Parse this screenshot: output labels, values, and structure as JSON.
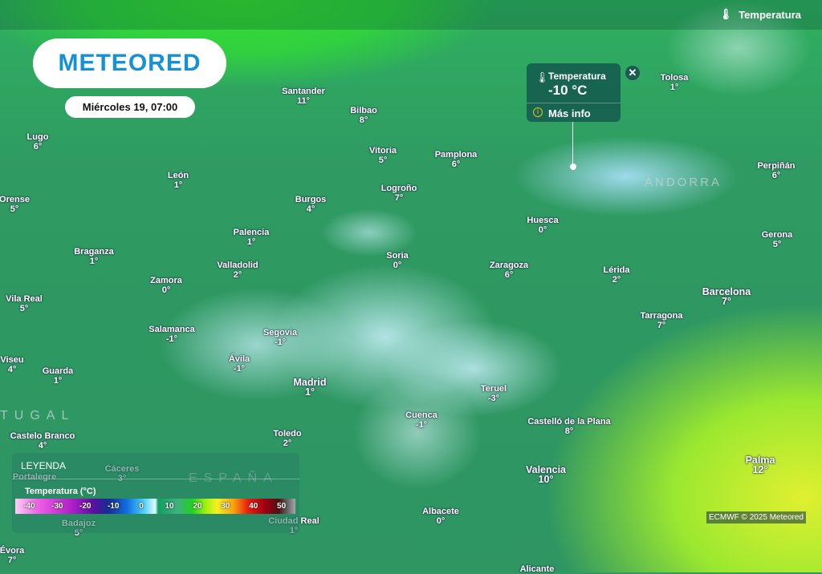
{
  "header": {
    "layer_label": "Temperatura",
    "layer_icon": "thermometer-icon"
  },
  "logo": "METEORED",
  "date": "Miércoles 19, 07:00",
  "popup": {
    "title": "Temperatura",
    "value": "-10 °C",
    "more": "Más info",
    "close_icon": "close-icon"
  },
  "countries": [
    "ANDORRA",
    "ESPAÑA",
    "TUGAL"
  ],
  "cities": [
    {
      "name": "Santander",
      "temp": "11°"
    },
    {
      "name": "Bilbao",
      "temp": "8°"
    },
    {
      "name": "Lugo",
      "temp": "6°"
    },
    {
      "name": "Vitoria",
      "temp": "5°"
    },
    {
      "name": "Pamplona",
      "temp": "6°"
    },
    {
      "name": "León",
      "temp": "1°"
    },
    {
      "name": "Orense",
      "temp": "5°"
    },
    {
      "name": "Burgos",
      "temp": "4°"
    },
    {
      "name": "Logroño",
      "temp": "7°"
    },
    {
      "name": "Huesca",
      "temp": "0°"
    },
    {
      "name": "Palencia",
      "temp": "1°"
    },
    {
      "name": "Braganza",
      "temp": "1°"
    },
    {
      "name": "Soria",
      "temp": "0°"
    },
    {
      "name": "Zaragoza",
      "temp": "6°"
    },
    {
      "name": "Lérida",
      "temp": "2°"
    },
    {
      "name": "Valladolid",
      "temp": "2°"
    },
    {
      "name": "Zamora",
      "temp": "0°"
    },
    {
      "name": "Vila Real",
      "temp": "5°"
    },
    {
      "name": "Barcelona",
      "temp": "7°"
    },
    {
      "name": "Tarragona",
      "temp": "7°"
    },
    {
      "name": "Salamanca",
      "temp": "-1°"
    },
    {
      "name": "Segovia",
      "temp": "-1°"
    },
    {
      "name": "Viseu",
      "temp": "4°"
    },
    {
      "name": "Ávila",
      "temp": "-1°"
    },
    {
      "name": "Guarda",
      "temp": "1°"
    },
    {
      "name": "Madrid",
      "temp": "1°"
    },
    {
      "name": "Teruel",
      "temp": "-3°"
    },
    {
      "name": "Cuenca",
      "temp": "-1°"
    },
    {
      "name": "Castelló de la Plana",
      "temp": "8°"
    },
    {
      "name": "Toledo",
      "temp": "2°"
    },
    {
      "name": "Castelo Branco",
      "temp": "4°"
    },
    {
      "name": "Cáceres",
      "temp": "3°"
    },
    {
      "name": "Valencia",
      "temp": "10°"
    },
    {
      "name": "Palma",
      "temp": "12°"
    },
    {
      "name": "Portalegre",
      "temp": ""
    },
    {
      "name": "Ciudad Real",
      "temp": "1°"
    },
    {
      "name": "Albacete",
      "temp": "0°"
    },
    {
      "name": "Badajoz",
      "temp": "5°"
    },
    {
      "name": "Évora",
      "temp": "7°"
    },
    {
      "name": "Alicante",
      "temp": ""
    },
    {
      "name": "Tolosa",
      "temp": "1°"
    },
    {
      "name": "Perpiñán",
      "temp": "6°"
    },
    {
      "name": "Gerona",
      "temp": "5°"
    }
  ],
  "legend": {
    "title": "LEYENDA",
    "unit": "Temperatura (°C)",
    "ticks": [
      "-40",
      "-30",
      "-20",
      "-10",
      "0",
      "10",
      "20",
      "30",
      "40",
      "50"
    ],
    "range": [
      -45,
      50
    ]
  },
  "credit": "ECMWF © 2025 Meteored"
}
